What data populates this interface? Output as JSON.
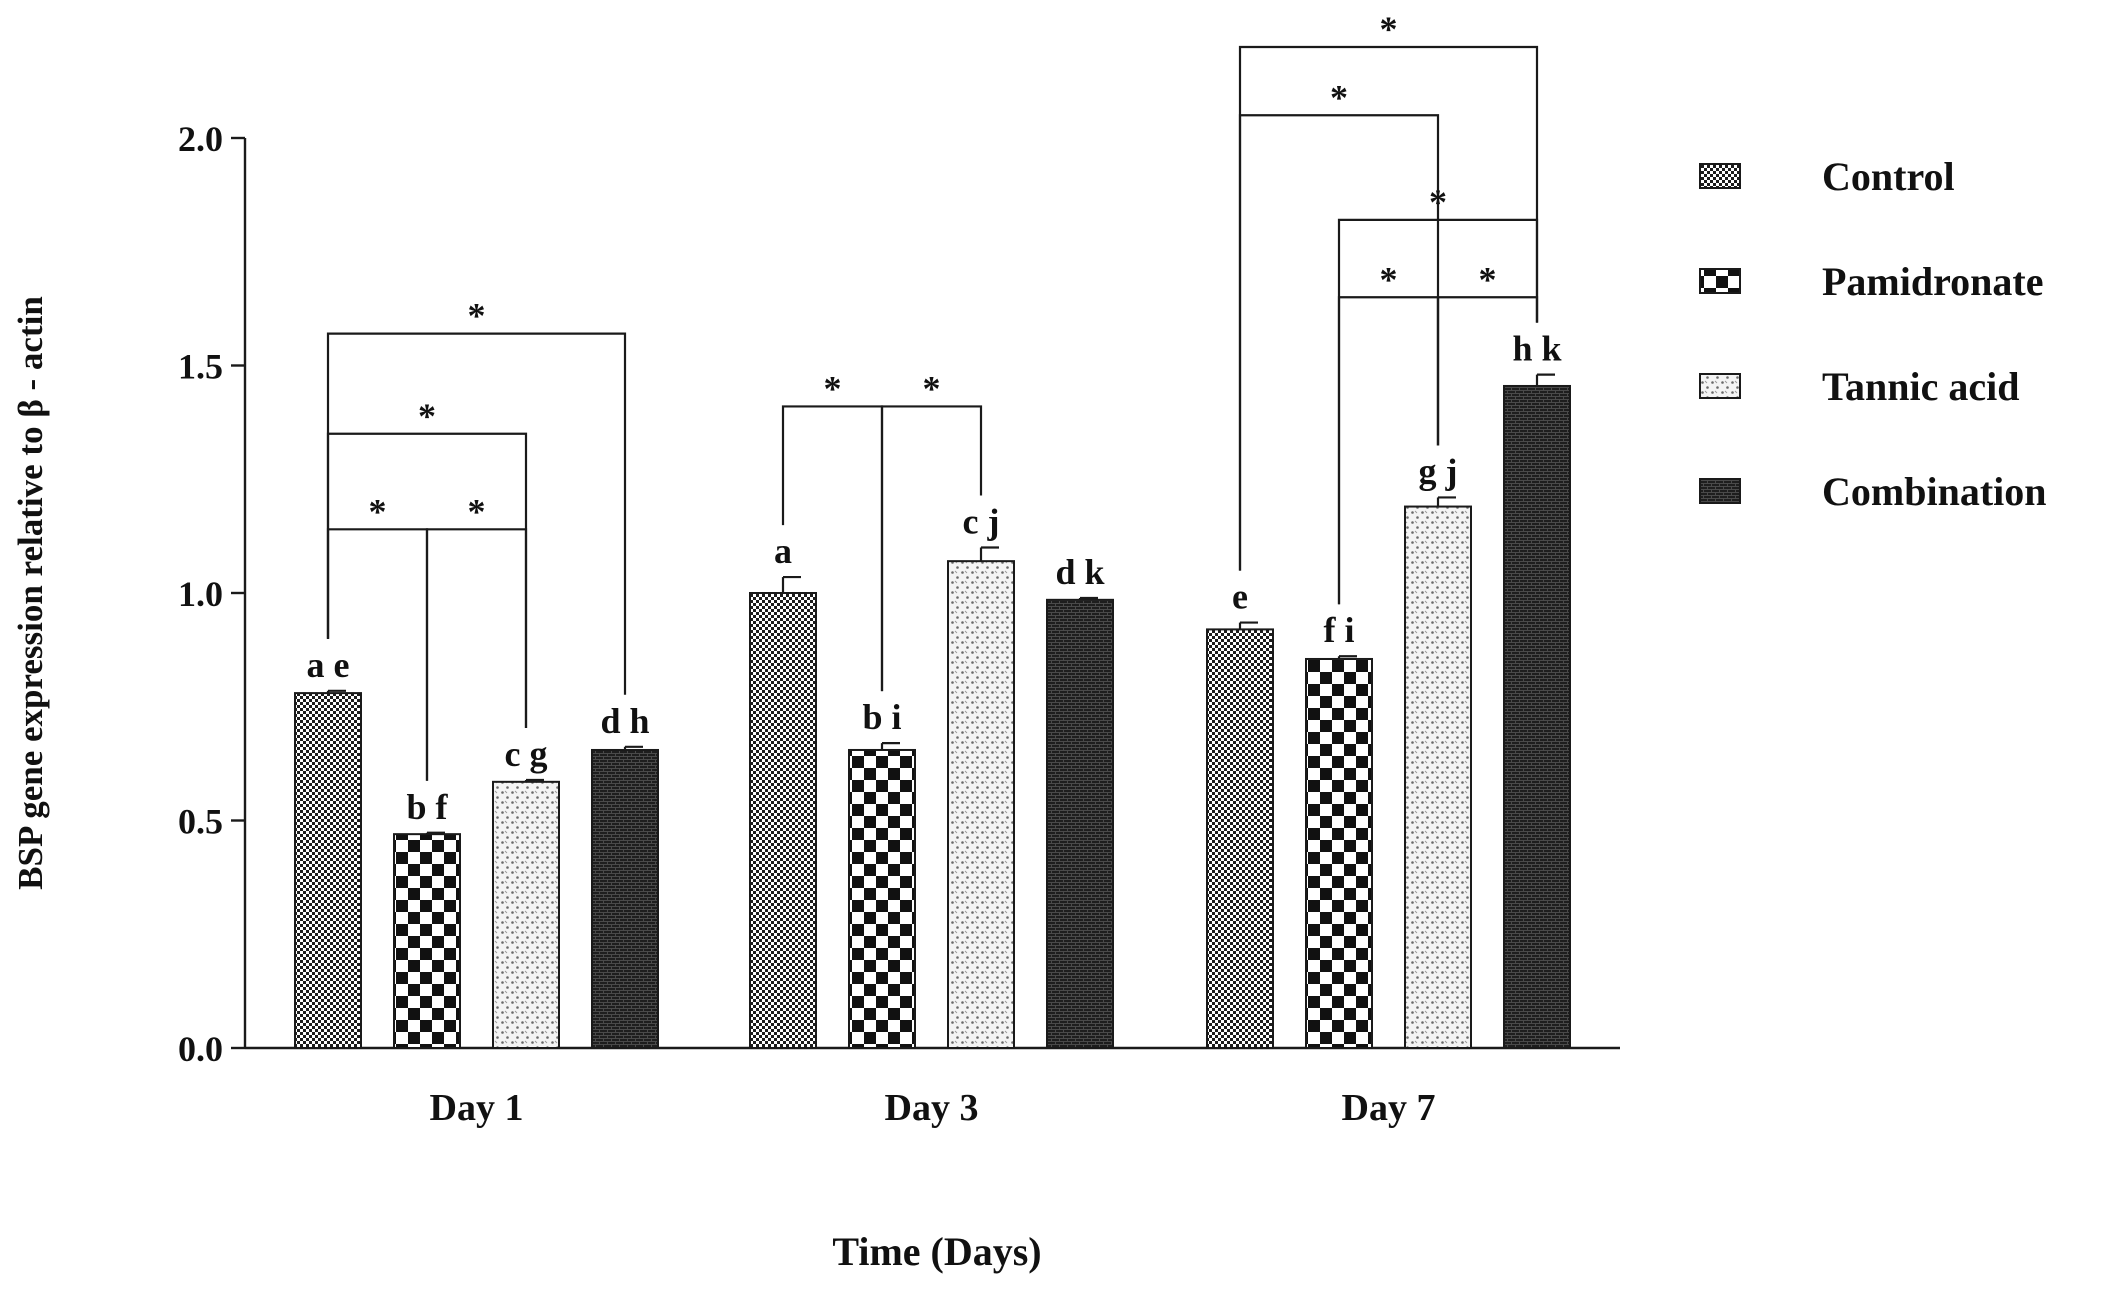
{
  "chart_data": {
    "type": "bar",
    "title": "",
    "xlabel": "Time (Days)",
    "ylabel": "BSP gene expression relative to β - actin",
    "ylim": [
      0,
      2.0
    ],
    "yticks": [
      "0.0",
      "0.5",
      "1.0",
      "1.5",
      "2.0"
    ],
    "grid": false,
    "legend_position": "right",
    "categories": [
      "Day 1",
      "Day 3",
      "Day 7"
    ],
    "series": [
      {
        "name": "Control",
        "pattern": "fine-checker",
        "values": [
          0.78,
          1.0,
          0.92
        ],
        "errors": [
          0.005,
          0.035,
          0.015
        ]
      },
      {
        "name": "Pamidronate",
        "pattern": "large-checker",
        "values": [
          0.47,
          0.655,
          0.855
        ],
        "errors": [
          0.003,
          0.015,
          0.006
        ]
      },
      {
        "name": "Tannic acid",
        "pattern": "dots",
        "values": [
          0.585,
          1.07,
          1.19
        ],
        "errors": [
          0.004,
          0.03,
          0.02
        ]
      },
      {
        "name": "Combination",
        "pattern": "dark-brick",
        "values": [
          0.655,
          0.985,
          1.455
        ],
        "errors": [
          0.007,
          0.004,
          0.025
        ]
      }
    ],
    "bar_labels": [
      [
        "a e",
        "b f",
        "c  g",
        "d h"
      ],
      [
        "a",
        "b i",
        "c j",
        "d k"
      ],
      [
        "e",
        "f i",
        "g j",
        "h k"
      ]
    ],
    "significance_marker": "*",
    "significance": [
      {
        "group": 0,
        "from": 0,
        "to": 3,
        "level": 1.57
      },
      {
        "group": 0,
        "from": 0,
        "to": 2,
        "level": 1.35
      },
      {
        "group": 0,
        "from": 0,
        "to": 1,
        "level": 1.14
      },
      {
        "group": 0,
        "from": 1,
        "to": 2,
        "level": 1.14
      },
      {
        "group": 1,
        "from": 0,
        "to": 1,
        "level": 1.41
      },
      {
        "group": 1,
        "from": 1,
        "to": 2,
        "level": 1.41
      },
      {
        "group": 2,
        "from": 0,
        "to": 3,
        "level": 2.2
      },
      {
        "group": 2,
        "from": 0,
        "to": 2,
        "level": 2.05
      },
      {
        "group": 2,
        "from": 1,
        "to": 3,
        "level": 1.82
      },
      {
        "group": 2,
        "from": 1,
        "to": 2,
        "level": 1.65
      },
      {
        "group": 2,
        "from": 2,
        "to": 3,
        "level": 1.65
      }
    ]
  }
}
